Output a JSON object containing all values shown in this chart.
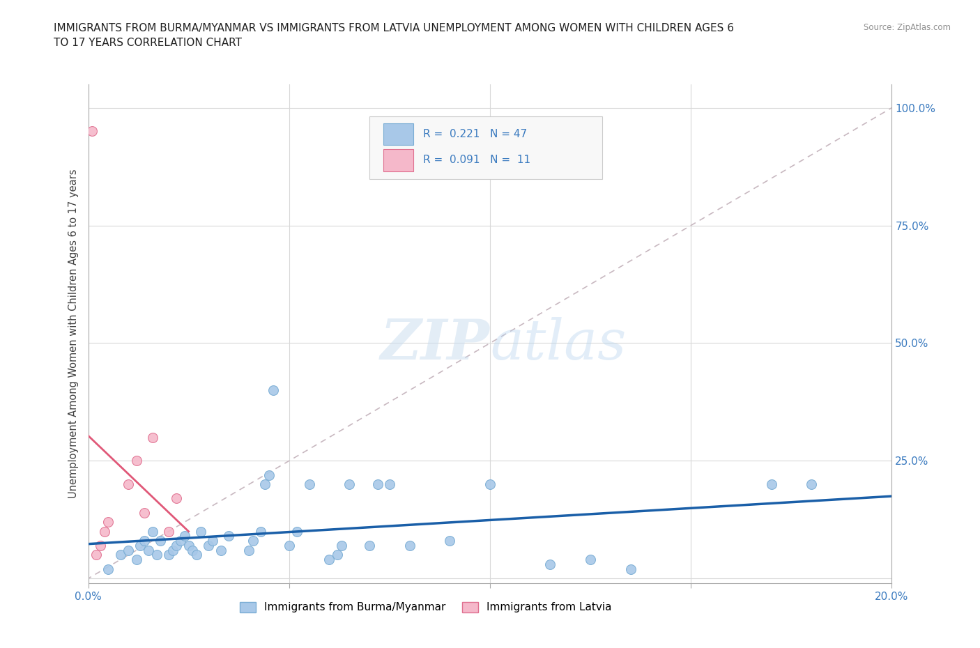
{
  "title": "IMMIGRANTS FROM BURMA/MYANMAR VS IMMIGRANTS FROM LATVIA UNEMPLOYMENT AMONG WOMEN WITH CHILDREN AGES 6\nTO 17 YEARS CORRELATION CHART",
  "source_text": "Source: ZipAtlas.com",
  "ylabel": "Unemployment Among Women with Children Ages 6 to 17 years",
  "xlim": [
    0.0,
    0.2
  ],
  "ylim": [
    -0.01,
    1.05
  ],
  "x_ticks": [
    0.0,
    0.05,
    0.1,
    0.15,
    0.2
  ],
  "y_ticks": [
    0.0,
    0.25,
    0.5,
    0.75,
    1.0
  ],
  "legend_R1": "0.221",
  "legend_N1": "47",
  "legend_R2": "0.091",
  "legend_N2": "11",
  "series1_color": "#a8c8e8",
  "series1_edge": "#7aadd4",
  "series2_color": "#f5b8ca",
  "series2_edge": "#e07090",
  "regression1_color": "#1a5fa8",
  "regression2_color": "#e05878",
  "diagonal_color": "#c8b8c0",
  "grid_color": "#d8d8d8",
  "title_color": "#202020",
  "label_color": "#3a7abf",
  "series1_label": "Immigrants from Burma/Myanmar",
  "series2_label": "Immigrants from Latvia",
  "burma_x": [
    0.005,
    0.008,
    0.01,
    0.012,
    0.013,
    0.014,
    0.015,
    0.016,
    0.017,
    0.018,
    0.02,
    0.021,
    0.022,
    0.023,
    0.024,
    0.025,
    0.026,
    0.027,
    0.028,
    0.03,
    0.031,
    0.033,
    0.035,
    0.04,
    0.041,
    0.043,
    0.044,
    0.045,
    0.046,
    0.05,
    0.052,
    0.055,
    0.06,
    0.062,
    0.063,
    0.065,
    0.07,
    0.072,
    0.075,
    0.08,
    0.09,
    0.1,
    0.115,
    0.125,
    0.135,
    0.17,
    0.18
  ],
  "burma_y": [
    0.02,
    0.05,
    0.06,
    0.04,
    0.07,
    0.08,
    0.06,
    0.1,
    0.05,
    0.08,
    0.05,
    0.06,
    0.07,
    0.08,
    0.09,
    0.07,
    0.06,
    0.05,
    0.1,
    0.07,
    0.08,
    0.06,
    0.09,
    0.06,
    0.08,
    0.1,
    0.2,
    0.22,
    0.4,
    0.07,
    0.1,
    0.2,
    0.04,
    0.05,
    0.07,
    0.2,
    0.07,
    0.2,
    0.2,
    0.07,
    0.08,
    0.2,
    0.03,
    0.04,
    0.02,
    0.2,
    0.2
  ],
  "latvia_x": [
    0.001,
    0.002,
    0.003,
    0.004,
    0.005,
    0.01,
    0.012,
    0.014,
    0.016,
    0.02,
    0.022
  ],
  "latvia_y": [
    0.95,
    0.05,
    0.07,
    0.1,
    0.12,
    0.2,
    0.25,
    0.14,
    0.3,
    0.1,
    0.17
  ]
}
